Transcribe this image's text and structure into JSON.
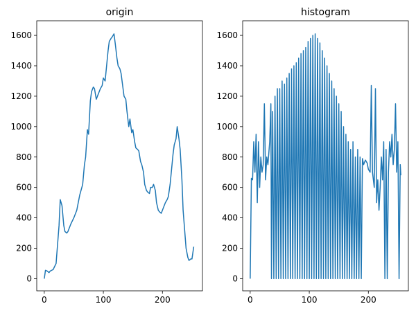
{
  "chart_data": [
    {
      "type": "line",
      "title": "origin",
      "color": "#1f77b4",
      "x": [
        0,
        2,
        5,
        8,
        10,
        15,
        20,
        25,
        27,
        30,
        33,
        35,
        38,
        40,
        45,
        50,
        55,
        60,
        65,
        68,
        70,
        73,
        75,
        78,
        80,
        83,
        85,
        88,
        90,
        93,
        95,
        98,
        100,
        103,
        105,
        108,
        110,
        113,
        115,
        118,
        120,
        123,
        125,
        128,
        130,
        133,
        135,
        138,
        140,
        143,
        145,
        148,
        150,
        153,
        155,
        158,
        160,
        163,
        165,
        168,
        170,
        173,
        175,
        178,
        180,
        183,
        185,
        188,
        190,
        193,
        195,
        198,
        200,
        203,
        205,
        208,
        210,
        213,
        215,
        218,
        220,
        223,
        225,
        228,
        230,
        233,
        235,
        238,
        240,
        243,
        245,
        248,
        250,
        253
      ],
      "values": [
        0,
        55,
        50,
        40,
        50,
        60,
        100,
        350,
        520,
        480,
        350,
        310,
        300,
        310,
        360,
        400,
        450,
        550,
        620,
        750,
        800,
        980,
        950,
        1170,
        1230,
        1260,
        1250,
        1180,
        1200,
        1230,
        1250,
        1270,
        1320,
        1300,
        1380,
        1500,
        1560,
        1580,
        1590,
        1610,
        1550,
        1450,
        1400,
        1380,
        1350,
        1260,
        1200,
        1180,
        1100,
        1000,
        1050,
        960,
        980,
        900,
        860,
        850,
        840,
        770,
        750,
        700,
        620,
        580,
        570,
        560,
        600,
        600,
        620,
        580,
        500,
        450,
        440,
        430,
        450,
        480,
        500,
        520,
        540,
        620,
        700,
        820,
        880,
        920,
        1000,
        920,
        850,
        650,
        450,
        300,
        200,
        140,
        120,
        130,
        130,
        210
      ],
      "xlim": [
        -12.75,
        267.75
      ],
      "ylim": [
        -80,
        1696
      ],
      "xticks": [
        0,
        100,
        200
      ],
      "yticks": [
        0,
        200,
        400,
        600,
        800,
        1000,
        1200,
        1400,
        1600
      ]
    },
    {
      "type": "line",
      "title": "histogram",
      "color": "#1f77b4",
      "x": [
        0,
        2,
        4,
        6,
        8,
        10,
        12,
        14,
        16,
        18,
        20,
        22,
        24,
        26,
        28,
        30,
        33,
        35,
        36,
        38,
        40,
        42,
        44,
        46,
        48,
        50,
        52,
        54,
        56,
        58,
        60,
        62,
        64,
        66,
        68,
        70,
        72,
        74,
        76,
        78,
        80,
        82,
        84,
        86,
        88,
        90,
        92,
        94,
        96,
        98,
        100,
        102,
        104,
        106,
        108,
        110,
        112,
        114,
        116,
        118,
        120,
        122,
        124,
        126,
        128,
        130,
        132,
        134,
        136,
        138,
        140,
        142,
        144,
        146,
        148,
        150,
        152,
        154,
        156,
        158,
        160,
        162,
        164,
        166,
        168,
        170,
        172,
        174,
        176,
        178,
        180,
        182,
        184,
        186,
        188,
        190,
        192,
        195,
        198,
        200,
        203,
        205,
        207,
        210,
        212,
        214,
        216,
        218,
        220,
        222,
        224,
        226,
        228,
        230,
        232,
        234,
        236,
        238,
        240,
        242,
        244,
        246,
        248,
        250,
        252,
        254,
        255
      ],
      "values": [
        0,
        660,
        650,
        900,
        700,
        950,
        500,
        900,
        600,
        800,
        700,
        750,
        1150,
        650,
        800,
        750,
        900,
        1150,
        0,
        1100,
        0,
        1200,
        0,
        1250,
        0,
        1250,
        0,
        1300,
        0,
        1280,
        0,
        1320,
        0,
        1350,
        0,
        1380,
        0,
        1400,
        0,
        1420,
        0,
        1450,
        0,
        1480,
        0,
        1500,
        0,
        1520,
        0,
        1560,
        0,
        1580,
        0,
        1600,
        0,
        1610,
        0,
        1580,
        0,
        1550,
        0,
        1500,
        0,
        1450,
        0,
        1400,
        0,
        1350,
        0,
        1300,
        0,
        1250,
        0,
        1200,
        0,
        1150,
        0,
        1100,
        0,
        1000,
        0,
        950,
        0,
        900,
        0,
        850,
        0,
        900,
        0,
        800,
        0,
        850,
        0,
        800,
        0,
        790,
        750,
        780,
        760,
        720,
        700,
        1270,
        700,
        600,
        1250,
        500,
        650,
        450,
        600,
        800,
        650,
        900,
        0,
        850,
        0,
        700,
        900,
        800,
        950,
        750,
        850,
        1150,
        700,
        900,
        0,
        750,
        680
      ],
      "xlim": [
        -12.75,
        267.75
      ],
      "ylim": [
        -80,
        1696
      ],
      "xticks": [
        0,
        100,
        200
      ],
      "yticks": [
        0,
        200,
        400,
        600,
        800,
        1000,
        1200,
        1400,
        1600
      ]
    }
  ]
}
